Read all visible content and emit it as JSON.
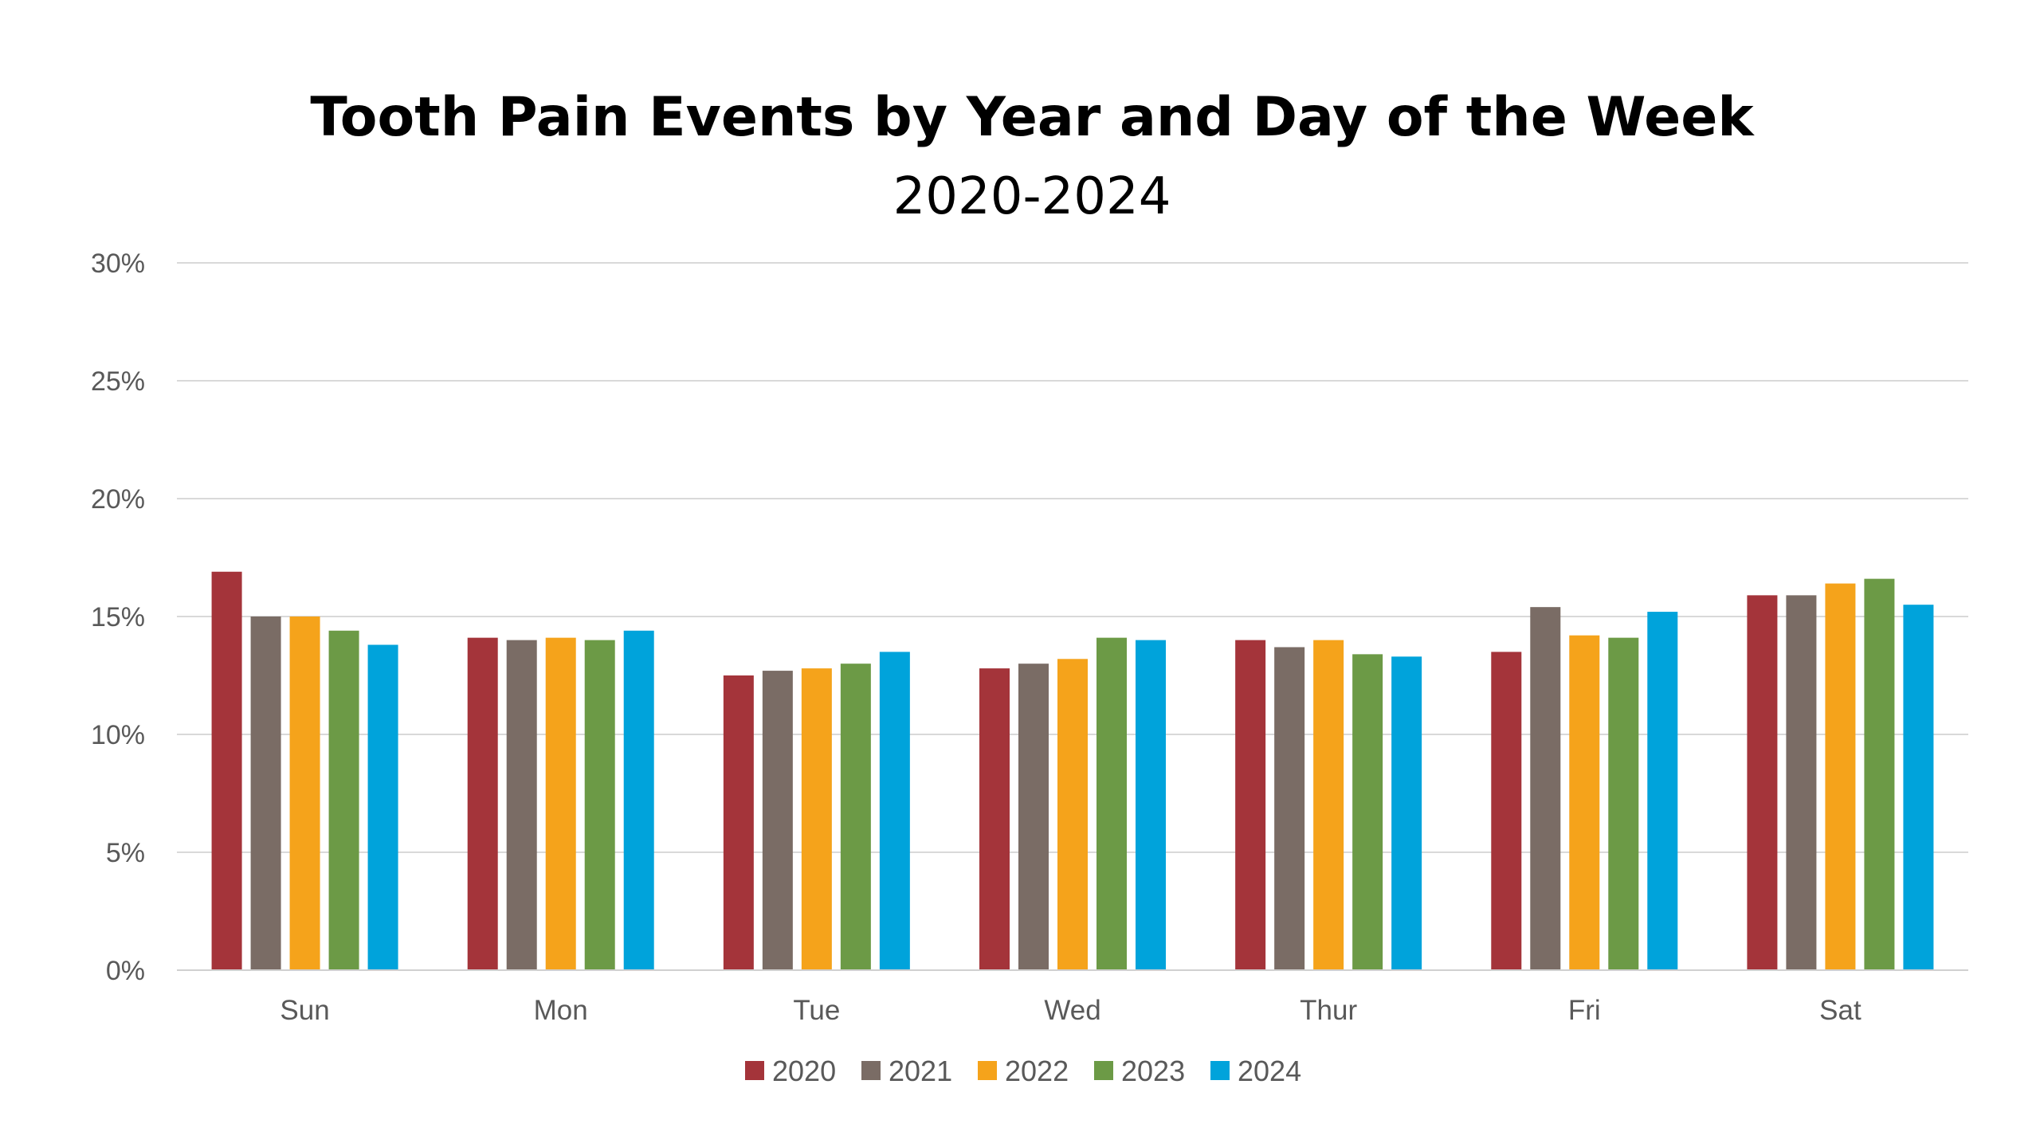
{
  "chart_data": {
    "type": "bar",
    "title": "Tooth Pain Events by Year and Day of the Week",
    "subtitle": "2020-2024",
    "xlabel": "",
    "ylabel": "",
    "ylim": [
      0,
      30
    ],
    "y_ticks": [
      "0%",
      "5%",
      "10%",
      "15%",
      "20%",
      "25%",
      "30%"
    ],
    "grid": true,
    "legend_position": "bottom",
    "categories": [
      "Sun",
      "Mon",
      "Tue",
      "Wed",
      "Thur",
      "Fri",
      "Sat"
    ],
    "series": [
      {
        "name": "2020",
        "color": "#a4343a",
        "values": [
          16.9,
          14.1,
          12.5,
          12.8,
          14.0,
          13.5,
          15.9
        ]
      },
      {
        "name": "2021",
        "color": "#7a6c65",
        "values": [
          15.0,
          14.0,
          12.7,
          13.0,
          13.7,
          15.4,
          15.9
        ]
      },
      {
        "name": "2022",
        "color": "#f5a31b",
        "values": [
          15.0,
          14.1,
          12.8,
          13.2,
          14.0,
          14.2,
          16.4
        ]
      },
      {
        "name": "2023",
        "color": "#6c9a46",
        "values": [
          14.4,
          14.0,
          13.0,
          14.1,
          13.4,
          14.1,
          16.6
        ]
      },
      {
        "name": "2024",
        "color": "#00a3db",
        "values": [
          13.8,
          14.4,
          13.5,
          14.0,
          13.3,
          15.2,
          15.5
        ]
      }
    ]
  }
}
